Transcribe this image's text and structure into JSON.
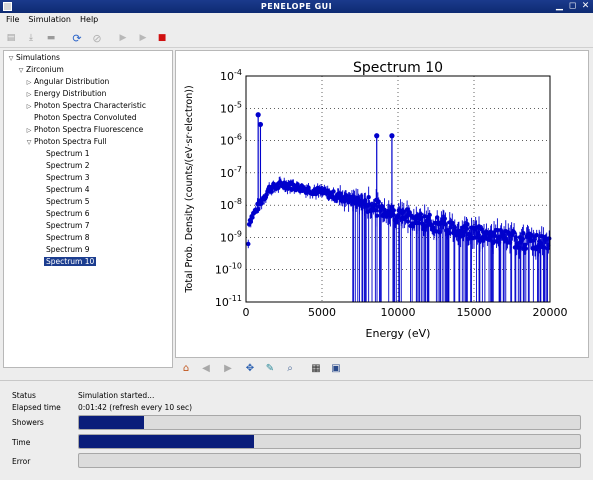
{
  "window": {
    "title": "PENELOPE GUI"
  },
  "menu": [
    "File",
    "Simulation",
    "Help"
  ],
  "toolbar_icons": [
    "new-icon",
    "open-icon",
    "save-icon",
    "refresh-icon",
    "stop-disabled-icon",
    "play-icon",
    "step-icon",
    "stop-red-icon"
  ],
  "tree": {
    "root": "Simulations",
    "material": "Zirconium",
    "groups": [
      "Angular Distribution",
      "Energy Distribution",
      "Photon Spectra Characteristic",
      "Photon Spectra Convoluted",
      "Photon Spectra Fluorescence",
      "Photon Spectra Full"
    ],
    "spectra": [
      "Spectrum 1",
      "Spectrum 2",
      "Spectrum 3",
      "Spectrum 4",
      "Spectrum 5",
      "Spectrum 6",
      "Spectrum 7",
      "Spectrum 8",
      "Spectrum 9",
      "Spectrum 10"
    ],
    "selected": "Spectrum 10"
  },
  "plot_toolbar": [
    "home-icon",
    "back-icon",
    "forward-icon",
    "pan-icon",
    "zoom-icon",
    "zoom-rect-icon",
    "configure-icon",
    "save-figure-icon"
  ],
  "chart_data": {
    "type": "scatter",
    "title": "Spectrum 10",
    "xlabel": "Energy (eV)",
    "ylabel": "Total Prob. Density (counts/(eV·sr·electron))",
    "xlim": [
      0,
      20000
    ],
    "ylog": true,
    "ylim_exp": [
      -11,
      -4
    ],
    "x_ticks": [
      "0",
      "5000",
      "10000",
      "15000",
      "20000"
    ],
    "y_ticks": [
      "10^-11",
      "10^-10",
      "10^-9",
      "10^-8",
      "10^-7",
      "10^-6",
      "10^-5",
      "10^-4"
    ],
    "grid": true,
    "color": "#0000cc",
    "peaks": [
      {
        "x": 800,
        "y_exp": -5.2
      },
      {
        "x": 950,
        "y_exp": -5.5
      },
      {
        "x": 8600,
        "y_exp": -5.85
      },
      {
        "x": 9600,
        "y_exp": -5.85
      }
    ],
    "continuum": [
      {
        "x": 200,
        "y_exp": -8.5
      },
      {
        "x": 1500,
        "y_exp": -7.5
      },
      {
        "x": 2500,
        "y_exp": -7.35
      },
      {
        "x": 5000,
        "y_exp": -7.6
      },
      {
        "x": 7500,
        "y_exp": -7.9
      },
      {
        "x": 10000,
        "y_exp": -8.3
      },
      {
        "x": 12500,
        "y_exp": -8.6
      },
      {
        "x": 15000,
        "y_exp": -8.85
      },
      {
        "x": 17500,
        "y_exp": -9.05
      },
      {
        "x": 20000,
        "y_exp": -9.2
      }
    ]
  },
  "status": {
    "status_label": "Status",
    "status_value": "Simulation started...",
    "elapsed_label": "Elapsed time",
    "elapsed_value": "0:01:42 (refresh every 10 sec)",
    "showers_label": "Showers",
    "showers_progress": 0.13,
    "time_label": "Time",
    "time_progress": 0.35,
    "error_label": "Error",
    "error_progress": 0
  }
}
